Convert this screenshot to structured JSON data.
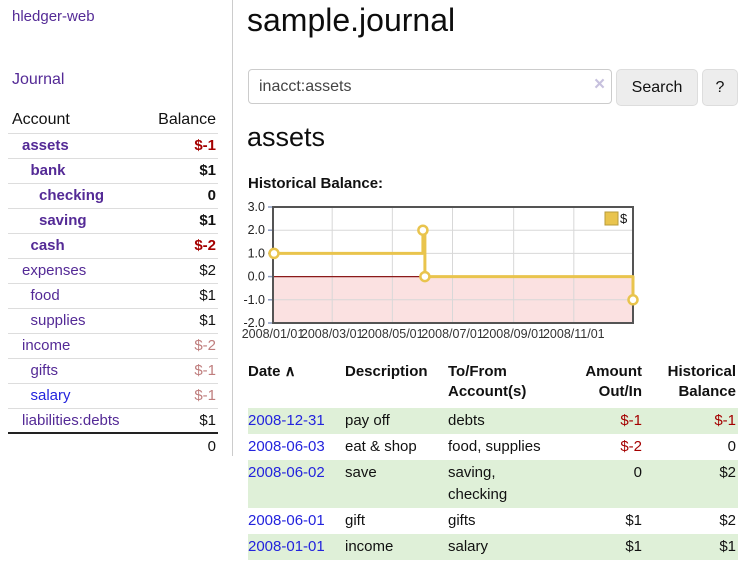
{
  "colors": {
    "purple": "#542a96",
    "blue": "#2323dd",
    "neg-strong": "#a40000",
    "neg-soft": "#bf7d7d",
    "stripe": "#dff0d8",
    "divider": "#cccccc",
    "rowline": "#dddddd"
  },
  "app": {
    "brand": "hledger-web"
  },
  "sidebar": {
    "nav_journal": "Journal",
    "accounts": {
      "headers": {
        "account": "Account",
        "balance": "Balance"
      },
      "rows": [
        {
          "name": "assets",
          "depth": 0,
          "balance": "$-1",
          "bold": true,
          "neg": "strong"
        },
        {
          "name": "bank",
          "depth": 1,
          "balance": "$1",
          "bold": true
        },
        {
          "name": "checking",
          "depth": 2,
          "balance": "0",
          "bold": true
        },
        {
          "name": "saving",
          "depth": 2,
          "balance": "$1",
          "bold": true
        },
        {
          "name": "cash",
          "depth": 1,
          "balance": "$-2",
          "bold": true,
          "neg": "strong"
        },
        {
          "name": "expenses",
          "depth": 0,
          "balance": "$2"
        },
        {
          "name": "food",
          "depth": 1,
          "balance": "$1"
        },
        {
          "name": "supplies",
          "depth": 1,
          "balance": "$1"
        },
        {
          "name": "income",
          "depth": 0,
          "balance": "$-2",
          "neg": "soft"
        },
        {
          "name": "gifts",
          "depth": 1,
          "balance": "$-1",
          "neg": "soft"
        },
        {
          "name": "salary",
          "depth": 1,
          "balance": "$-1",
          "neg": "soft",
          "link": "blue"
        },
        {
          "name": "liabilities:debts",
          "depth": 0,
          "balance": "$1"
        }
      ],
      "total": "0"
    }
  },
  "main": {
    "title": "sample.journal",
    "search": {
      "value": "inacct:assets",
      "clear_icon": "×",
      "search_button": "Search",
      "help_button": "?"
    },
    "account_heading": "assets",
    "chart_title": "Historical Balance:"
  },
  "chart_data": {
    "type": "line",
    "title": "Historical Balance:",
    "legend": {
      "label": "$",
      "position": "top-right"
    },
    "step": true,
    "x_ticks": [
      "2008/01/01",
      "2008/03/01",
      "2008/05/01",
      "2008/07/01",
      "2008/09/01",
      "2008/11/01"
    ],
    "y_ticks": [
      3.0,
      2.0,
      1.0,
      0.0,
      -1.0,
      -2.0
    ],
    "ylim": [
      -2,
      3
    ],
    "xlim_dates": [
      "2008-01-01",
      "2008-12-31"
    ],
    "series": [
      {
        "name": "$",
        "points": [
          [
            "2008-01-01",
            1
          ],
          [
            "2008-06-01",
            2
          ],
          [
            "2008-06-03",
            0
          ],
          [
            "2008-12-31",
            -1
          ]
        ]
      }
    ],
    "line_color": "#e9c44d",
    "marker_fill": "#ffffff",
    "negative_region_color": "#fbe1e1",
    "zero_line_color": "#8b1a1a",
    "grid_color": "#d8d8d8",
    "border_color": "#545454",
    "tick_mark_color": "#8c9ac0",
    "grid": true
  },
  "register": {
    "sort_icon": "∧",
    "headers": [
      {
        "lines": [
          "Date"
        ],
        "align": "left",
        "sorted": true
      },
      {
        "lines": [
          "Description"
        ],
        "align": "left"
      },
      {
        "lines": [
          "To/From",
          "Account(s)"
        ],
        "align": "left"
      },
      {
        "lines": [
          "Amount",
          "Out/In"
        ],
        "align": "right"
      },
      {
        "lines": [
          "Historical",
          "Balance"
        ],
        "align": "right"
      }
    ],
    "rows": [
      {
        "date": "2008-12-31",
        "description": "pay off",
        "accounts": [
          "debts"
        ],
        "amount": "$-1",
        "amount_neg": true,
        "historical": "$-1",
        "historical_neg": true
      },
      {
        "date": "2008-06-03",
        "description": "eat & shop",
        "accounts": [
          "food, supplies"
        ],
        "amount": "$-2",
        "amount_neg": true,
        "historical": "0"
      },
      {
        "date": "2008-06-02",
        "description": "save",
        "accounts": [
          "saving,",
          "checking"
        ],
        "amount": "0",
        "historical": "$2"
      },
      {
        "date": "2008-06-01",
        "description": "gift",
        "accounts": [
          "gifts"
        ],
        "amount": "$1",
        "historical": "$2"
      },
      {
        "date": "2008-01-01",
        "description": "income",
        "accounts": [
          "salary"
        ],
        "amount": "$1",
        "historical": "$1"
      }
    ]
  }
}
